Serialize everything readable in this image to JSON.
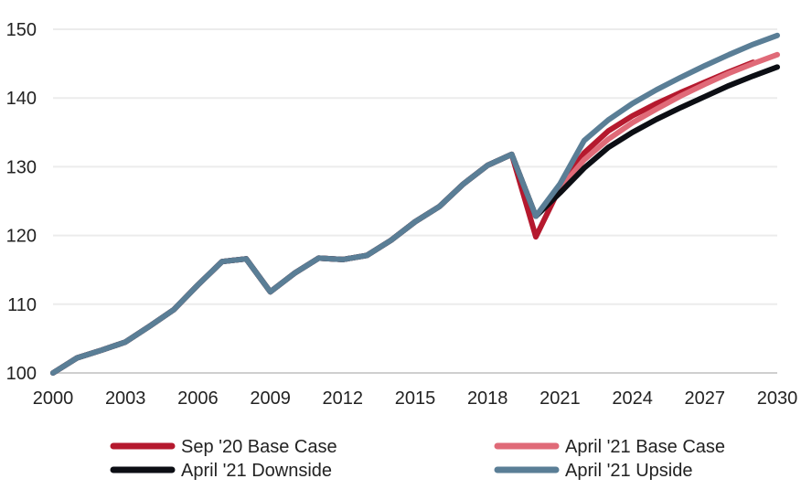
{
  "chart_data": {
    "type": "line",
    "title": "",
    "xlabel": "",
    "ylabel": "",
    "x": [
      2000,
      2001,
      2002,
      2003,
      2004,
      2005,
      2006,
      2007,
      2008,
      2009,
      2010,
      2011,
      2012,
      2013,
      2014,
      2015,
      2016,
      2017,
      2018,
      2019,
      2020,
      2021,
      2022,
      2023,
      2024,
      2025,
      2026,
      2027,
      2028,
      2029,
      2030
    ],
    "xlim": [
      2000,
      2030
    ],
    "ylim": [
      100,
      150
    ],
    "x_ticks": [
      "2000",
      "2003",
      "2006",
      "2009",
      "2012",
      "2015",
      "2018",
      "2021",
      "2024",
      "2027",
      "2030"
    ],
    "y_ticks": [
      "100",
      "110",
      "120",
      "130",
      "140",
      "150"
    ],
    "grid": "horizontal",
    "legend_position": "bottom",
    "series": [
      {
        "name": "Sep '20 Base Case",
        "color": "#b5192e",
        "values": [
          100,
          102.2,
          103.3,
          104.5,
          106.8,
          109.2,
          112.8,
          116.2,
          116.6,
          111.8,
          114.5,
          116.7,
          116.5,
          117.1,
          119.3,
          122.0,
          124.2,
          127.5,
          130.2,
          131.8,
          119.8,
          127.0,
          132.0,
          135.2,
          137.4,
          139.2,
          140.8,
          142.3,
          143.8,
          145.2,
          null
        ]
      },
      {
        "name": "April '21 Base Case",
        "color": "#e06a78",
        "values": [
          100,
          102.2,
          103.3,
          104.5,
          106.8,
          109.2,
          112.8,
          116.2,
          116.6,
          111.8,
          114.5,
          116.7,
          116.5,
          117.1,
          119.3,
          122.0,
          124.2,
          127.5,
          130.2,
          131.8,
          122.8,
          126.8,
          131.0,
          134.0,
          136.4,
          138.4,
          140.3,
          142.0,
          143.6,
          145.0,
          146.3
        ]
      },
      {
        "name": "April '21 Downside",
        "color": "#0c0e14",
        "values": [
          100,
          102.2,
          103.3,
          104.5,
          106.8,
          109.2,
          112.8,
          116.2,
          116.6,
          111.8,
          114.5,
          116.7,
          116.5,
          117.1,
          119.3,
          122.0,
          124.2,
          127.5,
          130.2,
          131.8,
          122.8,
          126.2,
          129.8,
          132.8,
          135.0,
          136.9,
          138.6,
          140.2,
          141.8,
          143.2,
          144.5
        ]
      },
      {
        "name": "April '21 Upside",
        "color": "#5a7e96",
        "values": [
          100,
          102.2,
          103.3,
          104.5,
          106.8,
          109.2,
          112.8,
          116.2,
          116.6,
          111.8,
          114.5,
          116.7,
          116.5,
          117.1,
          119.3,
          122.0,
          124.2,
          127.5,
          130.2,
          131.8,
          122.8,
          127.5,
          133.8,
          136.8,
          139.2,
          141.2,
          143.0,
          144.7,
          146.3,
          147.8,
          149.1
        ]
      }
    ]
  }
}
